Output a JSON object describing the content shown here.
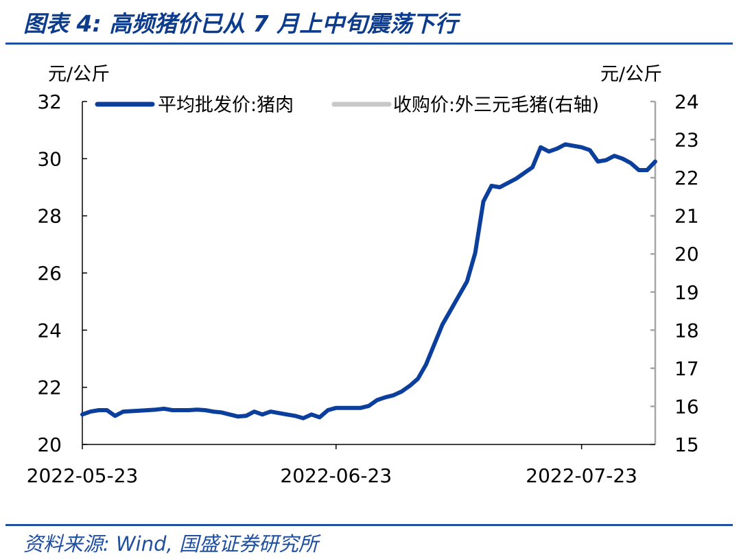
{
  "title": "图表 4: 高频猪价已从 7 月上中旬震荡下行",
  "source": "资料来源: Wind, 国盛证券研究所",
  "colors": {
    "accent": "#0d3c8c",
    "rule": "#1f4fa0",
    "series_primary": "#0b3f9b",
    "series_secondary": "#c8c8c8",
    "right_axis": "#a6a6a6"
  },
  "chart_data": {
    "type": "line",
    "left_unit": "元/公斤",
    "right_unit": "元/公斤",
    "left_ylim": [
      20,
      32
    ],
    "left_ticks": [
      20,
      22,
      24,
      26,
      28,
      30,
      32
    ],
    "right_ylim": [
      15,
      24
    ],
    "right_ticks": [
      15,
      16,
      17,
      18,
      19,
      20,
      21,
      22,
      23,
      24
    ],
    "x_tick_labels": [
      "2022-05-23",
      "2022-06-23",
      "2022-07-23"
    ],
    "xlim": [
      "2022-05-23",
      "2022-08-01"
    ],
    "grid": false,
    "legend_position": "top",
    "series": [
      {
        "name": "平均批发价:猪肉",
        "axis": "left",
        "color": "#0b3f9b",
        "points": [
          [
            "2022-05-23",
            21.05
          ],
          [
            "2022-05-24",
            21.15
          ],
          [
            "2022-05-25",
            21.2
          ],
          [
            "2022-05-26",
            21.2
          ],
          [
            "2022-05-27",
            21.0
          ],
          [
            "2022-05-28",
            21.15
          ],
          [
            "2022-05-30",
            21.18
          ],
          [
            "2022-05-31",
            21.2
          ],
          [
            "2022-06-01",
            21.22
          ],
          [
            "2022-06-02",
            21.25
          ],
          [
            "2022-06-03",
            21.2
          ],
          [
            "2022-06-05",
            21.2
          ],
          [
            "2022-06-06",
            21.22
          ],
          [
            "2022-06-07",
            21.2
          ],
          [
            "2022-06-08",
            21.15
          ],
          [
            "2022-06-09",
            21.12
          ],
          [
            "2022-06-10",
            21.05
          ],
          [
            "2022-06-11",
            20.98
          ],
          [
            "2022-06-12",
            21.0
          ],
          [
            "2022-06-13",
            21.15
          ],
          [
            "2022-06-14",
            21.05
          ],
          [
            "2022-06-15",
            21.15
          ],
          [
            "2022-06-16",
            21.1
          ],
          [
            "2022-06-17",
            21.05
          ],
          [
            "2022-06-18",
            21.0
          ],
          [
            "2022-06-19",
            20.92
          ],
          [
            "2022-06-20",
            21.05
          ],
          [
            "2022-06-21",
            20.95
          ],
          [
            "2022-06-22",
            21.2
          ],
          [
            "2022-06-23",
            21.28
          ],
          [
            "2022-06-24",
            21.28
          ],
          [
            "2022-06-25",
            21.28
          ],
          [
            "2022-06-26",
            21.28
          ],
          [
            "2022-06-27",
            21.35
          ],
          [
            "2022-06-28",
            21.55
          ],
          [
            "2022-06-29",
            21.65
          ],
          [
            "2022-06-30",
            21.72
          ],
          [
            "2022-07-01",
            21.85
          ],
          [
            "2022-07-02",
            22.05
          ],
          [
            "2022-07-03",
            22.3
          ],
          [
            "2022-07-04",
            22.8
          ],
          [
            "2022-07-05",
            23.5
          ],
          [
            "2022-07-06",
            24.2
          ],
          [
            "2022-07-07",
            24.7
          ],
          [
            "2022-07-08",
            25.2
          ],
          [
            "2022-07-09",
            25.7
          ],
          [
            "2022-07-10",
            26.7
          ],
          [
            "2022-07-11",
            28.5
          ],
          [
            "2022-07-12",
            29.05
          ],
          [
            "2022-07-13",
            29.0
          ],
          [
            "2022-07-15",
            29.3
          ],
          [
            "2022-07-16",
            29.5
          ],
          [
            "2022-07-17",
            29.7
          ],
          [
            "2022-07-18",
            30.4
          ],
          [
            "2022-07-19",
            30.25
          ],
          [
            "2022-07-20",
            30.35
          ],
          [
            "2022-07-21",
            30.5
          ],
          [
            "2022-07-22",
            30.45
          ],
          [
            "2022-07-23",
            30.4
          ],
          [
            "2022-07-24",
            30.3
          ],
          [
            "2022-07-25",
            29.9
          ],
          [
            "2022-07-26",
            29.95
          ],
          [
            "2022-07-27",
            30.1
          ],
          [
            "2022-07-28",
            30.0
          ],
          [
            "2022-07-29",
            29.85
          ],
          [
            "2022-07-30",
            29.6
          ],
          [
            "2022-07-31",
            29.6
          ],
          [
            "2022-08-01",
            29.9
          ]
        ],
        "points_note": ""
      },
      {
        "name": "收购价:外三元毛猪(右轴)",
        "axis": "right",
        "color": "#c8c8c8",
        "points": []
      }
    ]
  }
}
